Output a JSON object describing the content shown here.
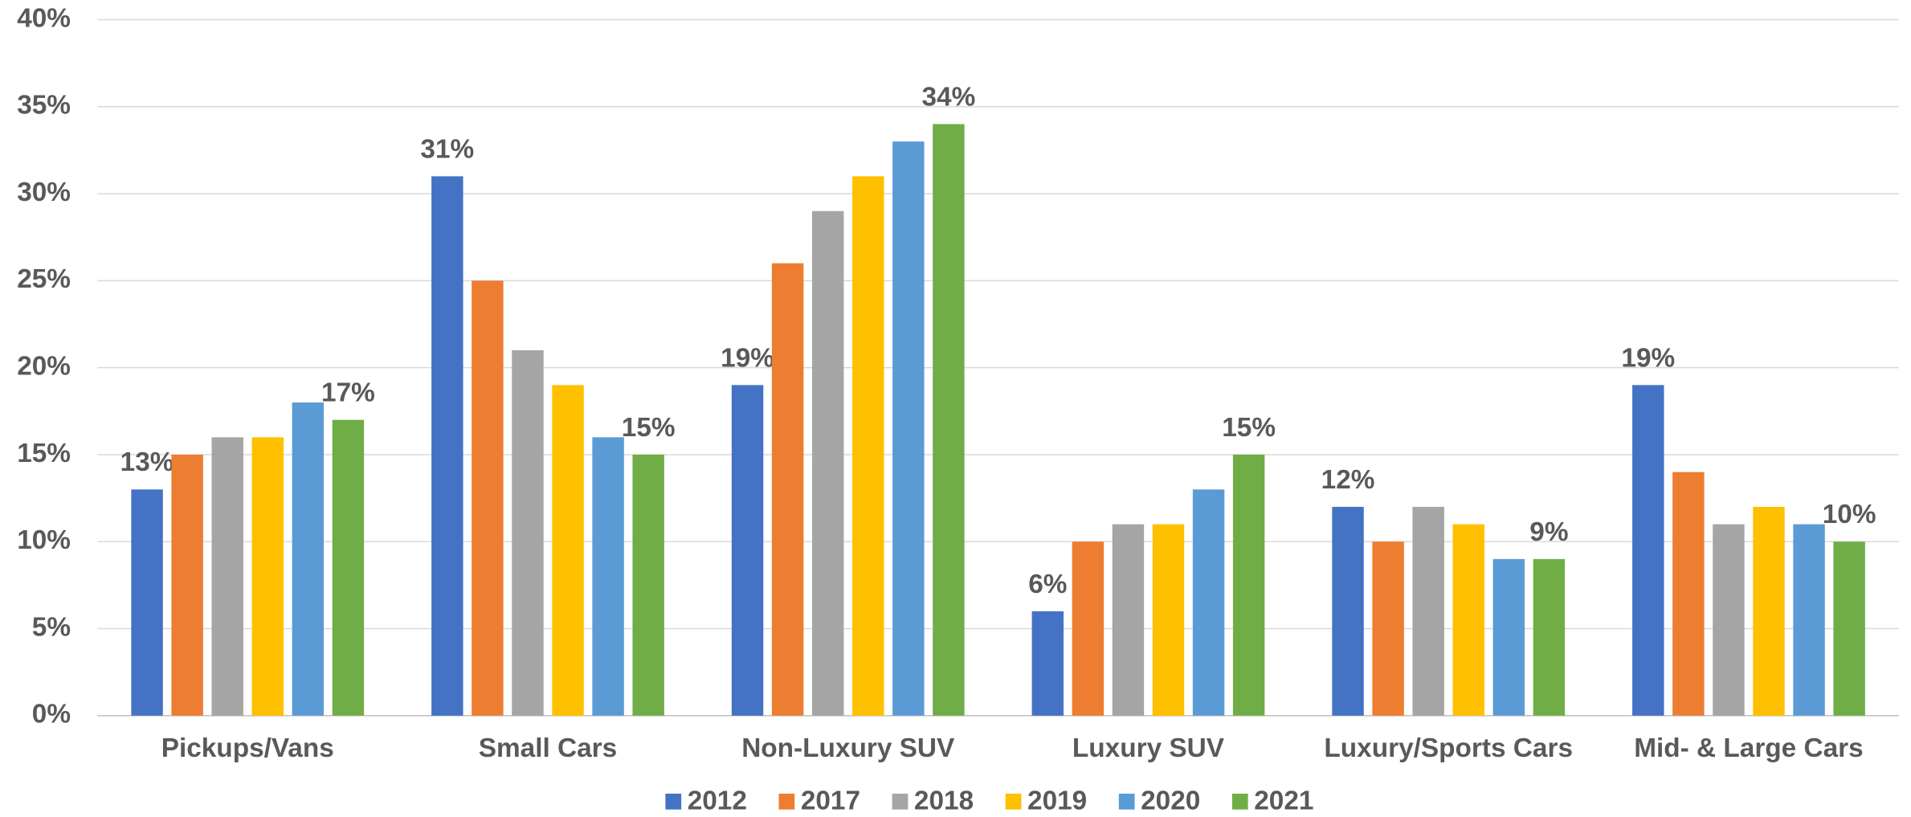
{
  "chart_data": {
    "type": "bar",
    "categories": [
      "Pickups/Vans",
      "Small Cars",
      "Non-Luxury SUV",
      "Luxury SUV",
      "Luxury/Sports Cars",
      "Mid- & Large Cars"
    ],
    "series": [
      {
        "name": "2012",
        "color": "#4472c4",
        "values": [
          13,
          31,
          19,
          6,
          12,
          19
        ],
        "value_labels": [
          "13%",
          "31%",
          "19%",
          "6%",
          "12%",
          "19%"
        ]
      },
      {
        "name": "2017",
        "color": "#ed7d31",
        "values": [
          15,
          25,
          26,
          10,
          10,
          14
        ]
      },
      {
        "name": "2018",
        "color": "#a5a5a5",
        "values": [
          16,
          21,
          29,
          11,
          12,
          11
        ]
      },
      {
        "name": "2019",
        "color": "#ffc000",
        "values": [
          16,
          19,
          31,
          11,
          11,
          12
        ]
      },
      {
        "name": "2020",
        "color": "#5b9bd5",
        "values": [
          18,
          16,
          33,
          13,
          9,
          11
        ]
      },
      {
        "name": "2021",
        "color": "#70ad47",
        "values": [
          17,
          15,
          34,
          15,
          9,
          10
        ],
        "value_labels": [
          "17%",
          "15%",
          "34%",
          "15%",
          "9%",
          "10%"
        ]
      }
    ],
    "ylim": [
      0,
      40
    ],
    "yticks": [
      {
        "value": 0,
        "label": "0%"
      },
      {
        "value": 5,
        "label": "5%"
      },
      {
        "value": 10,
        "label": "10%"
      },
      {
        "value": 15,
        "label": "15%"
      },
      {
        "value": 20,
        "label": "20%"
      },
      {
        "value": 25,
        "label": "25%"
      },
      {
        "value": 30,
        "label": "30%"
      },
      {
        "value": 35,
        "label": "35%"
      },
      {
        "value": 40,
        "label": "40%"
      }
    ],
    "grid": true,
    "legend": "bottom"
  }
}
